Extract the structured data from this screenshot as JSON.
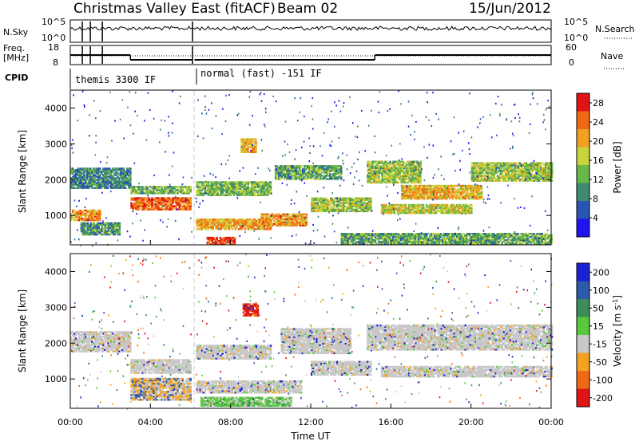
{
  "header": {
    "title": "Christmas Valley East (fitACF)",
    "beam": "Beam 02",
    "date": "15/Jun/2012"
  },
  "status_panels": {
    "nsky_label": "N.Sky",
    "nsearch_label": "N.Search",
    "nsky_ticks": [
      "10^5",
      "10^0"
    ],
    "freq_label_line1": "Freq.",
    "freq_label_line2": "[MHz]",
    "freq_ticks": [
      "18",
      "8"
    ],
    "nave_label": "Nave",
    "nave_ticks": [
      "60",
      "0"
    ],
    "cpid_label": "CPID",
    "cpid_segments": [
      {
        "label": "themis 3300 IF",
        "start_hour": 0.0,
        "end_hour": 6.1
      },
      {
        "label": "normal (fast) -151 IF",
        "start_hour": 6.2,
        "end_hour": 24.0
      }
    ],
    "freq_steps": [
      {
        "start_hour": 0.0,
        "end_hour": 3.0,
        "mhz": 13.0
      },
      {
        "start_hour": 3.0,
        "end_hour": 6.1,
        "mhz": 10.5
      },
      {
        "start_hour": 6.2,
        "end_hour": 15.2,
        "mhz": 10.5
      },
      {
        "start_hour": 15.2,
        "end_hour": 24.0,
        "mhz": 13.0
      }
    ]
  },
  "chart_data": [
    {
      "type": "heatmap",
      "name": "power",
      "xlabel": "",
      "ylabel": "Slant Range [km]",
      "xlim": [
        0,
        24
      ],
      "ylim": [
        180,
        4500
      ],
      "y_ticks": [
        1000,
        2000,
        3000,
        4000
      ],
      "colorbar": {
        "label": "Power [dB]",
        "ticks": [
          4,
          8,
          12,
          16,
          20,
          24,
          28
        ],
        "range": [
          0,
          30
        ],
        "colors": [
          "#1f14f0",
          "#2a55b4",
          "#3d8a6e",
          "#69b84a",
          "#c8d43a",
          "#f2a020",
          "#f06a16",
          "#e01414"
        ]
      },
      "bands": [
        {
          "x0": 0.0,
          "x1": 3.0,
          "y0": 1750,
          "y1": 2300,
          "level": 0.3
        },
        {
          "x0": 0.0,
          "x1": 1.5,
          "y0": 850,
          "y1": 1150,
          "level": 0.72
        },
        {
          "x0": 0.5,
          "x1": 2.5,
          "y0": 450,
          "y1": 800,
          "level": 0.35
        },
        {
          "x0": 3.0,
          "x1": 6.0,
          "y0": 1150,
          "y1": 1500,
          "level": 0.82
        },
        {
          "x0": 3.0,
          "x1": 6.0,
          "y0": 1600,
          "y1": 1800,
          "level": 0.4
        },
        {
          "x0": 6.2,
          "x1": 10.0,
          "y0": 1550,
          "y1": 1950,
          "level": 0.45
        },
        {
          "x0": 6.2,
          "x1": 10.0,
          "y0": 600,
          "y1": 900,
          "level": 0.7
        },
        {
          "x0": 6.8,
          "x1": 8.2,
          "y0": 180,
          "y1": 380,
          "level": 0.9
        },
        {
          "x0": 8.5,
          "x1": 9.3,
          "y0": 2750,
          "y1": 3150,
          "level": 0.68
        },
        {
          "x0": 9.5,
          "x1": 11.8,
          "y0": 700,
          "y1": 1050,
          "level": 0.72
        },
        {
          "x0": 10.2,
          "x1": 13.5,
          "y0": 2000,
          "y1": 2400,
          "level": 0.4
        },
        {
          "x0": 12.0,
          "x1": 15.0,
          "y0": 1100,
          "y1": 1500,
          "level": 0.5
        },
        {
          "x0": 14.8,
          "x1": 17.5,
          "y0": 1900,
          "y1": 2500,
          "level": 0.5
        },
        {
          "x0": 16.5,
          "x1": 20.5,
          "y0": 1450,
          "y1": 1850,
          "level": 0.65
        },
        {
          "x0": 15.5,
          "x1": 20.0,
          "y0": 1050,
          "y1": 1300,
          "level": 0.55
        },
        {
          "x0": 20.0,
          "x1": 24.0,
          "y0": 1950,
          "y1": 2450,
          "level": 0.5
        },
        {
          "x0": 13.5,
          "x1": 24.0,
          "y0": 200,
          "y1": 500,
          "level": 0.4
        }
      ]
    },
    {
      "type": "heatmap",
      "name": "velocity",
      "xlabel": "Time UT",
      "ylabel": "Slant Range [km]",
      "xlim": [
        0,
        24
      ],
      "ylim": [
        180,
        4500
      ],
      "x_ticks": [
        "00:00",
        "04:00",
        "08:00",
        "12:00",
        "16:00",
        "20:00",
        "00:00"
      ],
      "y_ticks": [
        1000,
        2000,
        3000,
        4000
      ],
      "colorbar": {
        "label": "Velocity [m s^-1]",
        "ticks": [
          200,
          100,
          50,
          15,
          -15,
          -50,
          -100,
          -200
        ],
        "colors": [
          "#1a22d2",
          "#2c5aa8",
          "#3c8c5c",
          "#58c83c",
          "#c8c8c8",
          "#f4a020",
          "#f06a16",
          "#e01414"
        ]
      },
      "bands": [
        {
          "x0": 0.0,
          "x1": 3.0,
          "y0": 1750,
          "y1": 2300,
          "kind": "ground"
        },
        {
          "x0": 3.0,
          "x1": 6.0,
          "y0": 1150,
          "y1": 1550,
          "kind": "ground"
        },
        {
          "x0": 6.2,
          "x1": 10.0,
          "y0": 1550,
          "y1": 1950,
          "kind": "ground"
        },
        {
          "x0": 6.2,
          "x1": 11.5,
          "y0": 600,
          "y1": 950,
          "kind": "ground"
        },
        {
          "x0": 6.5,
          "x1": 11.0,
          "y0": 230,
          "y1": 480,
          "kind": "green"
        },
        {
          "x0": 8.6,
          "x1": 9.4,
          "y0": 2750,
          "y1": 3100,
          "kind": "red"
        },
        {
          "x0": 10.5,
          "x1": 14.0,
          "y0": 1700,
          "y1": 2400,
          "kind": "ground"
        },
        {
          "x0": 12.0,
          "x1": 15.0,
          "y0": 1100,
          "y1": 1500,
          "kind": "ground"
        },
        {
          "x0": 14.8,
          "x1": 24.0,
          "y0": 1800,
          "y1": 2500,
          "kind": "ground"
        },
        {
          "x0": 15.5,
          "x1": 24.0,
          "y0": 1050,
          "y1": 1350,
          "kind": "ground"
        },
        {
          "x0": 3.0,
          "x1": 6.0,
          "y0": 400,
          "y1": 1000,
          "kind": "orange"
        }
      ]
    }
  ]
}
